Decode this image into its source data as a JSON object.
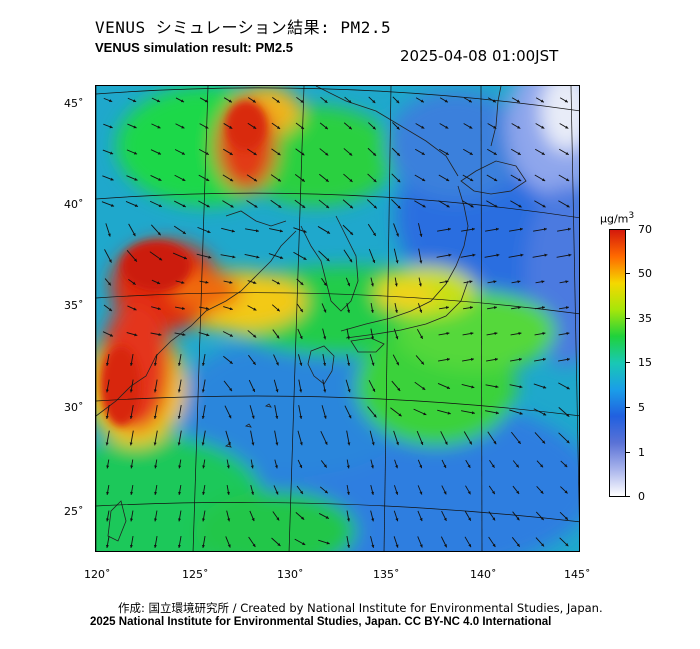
{
  "title_jp": "VENUS シミュレーション結果: PM2.5",
  "title_en": "VENUS simulation result: PM2.5",
  "timestamp": "2025-04-08 01:00JST",
  "lat_labels": [
    "45˚",
    "40˚",
    "35˚",
    "30˚",
    "25˚"
  ],
  "lon_labels": [
    "120˚",
    "125˚",
    "130˚",
    "135˚",
    "140˚",
    "145˚"
  ],
  "colorbar": {
    "unit_html": "μg/m<sup>3</sup>",
    "ticks": [
      "70",
      "50",
      "35",
      "15",
      "5",
      "1",
      "0"
    ],
    "colors": [
      "#d41a0c",
      "#ff6a00",
      "#f5d800",
      "#a6e60a",
      "#1fd23c",
      "#19c8b4",
      "#1a9ee8",
      "#2160e0",
      "#5a72d6",
      "#a9b4ec",
      "#ffffff"
    ]
  },
  "credits": {
    "line1": "作成: 国立環境研究所 / Created by National Institute for Environmental Studies, Japan.",
    "line2": "2025 National Institute for Environmental Studies, Japan. CC BY-NC 4.0 International"
  }
}
